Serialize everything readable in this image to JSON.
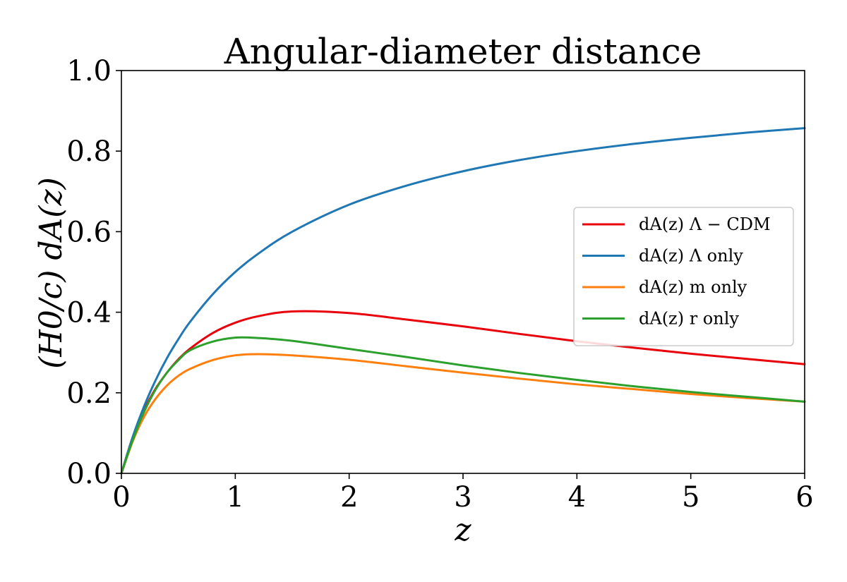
{
  "chart_data": {
    "type": "line",
    "title": "Angular-diameter distance",
    "xlabel": "z",
    "ylabel": "(H0/c) dA(z)",
    "xlim": [
      0,
      6
    ],
    "ylim": [
      0,
      1
    ],
    "x_ticks": [
      0,
      1,
      2,
      3,
      4,
      5,
      6
    ],
    "y_ticks": [
      0.0,
      0.2,
      0.4,
      0.6,
      0.8,
      1.0
    ],
    "x_tick_labels": [
      "0",
      "1",
      "2",
      "3",
      "4",
      "5",
      "6"
    ],
    "y_tick_labels": [
      "0.0",
      "0.2",
      "0.4",
      "0.6",
      "0.8",
      "1.0"
    ],
    "grid": false,
    "legend_position": "right",
    "x": [
      0,
      0.1,
      0.2,
      0.3,
      0.4,
      0.5,
      0.6,
      0.8,
      1.0,
      1.2,
      1.5,
      2.0,
      2.5,
      3.0,
      3.5,
      4.0,
      4.5,
      5.0,
      5.5,
      6.0
    ],
    "series": [
      {
        "name": "dA(z) Λ − CDM",
        "color": "#e8000b",
        "values": [
          0.0,
          0.09,
          0.157,
          0.21,
          0.25,
          0.283,
          0.309,
          0.348,
          0.374,
          0.39,
          0.402,
          0.398,
          0.382,
          0.365,
          0.346,
          0.328,
          0.312,
          0.297,
          0.284,
          0.271
        ]
      },
      {
        "name": "dA(z) Λ only",
        "color": "#1f77b4",
        "values": [
          0.0,
          0.091,
          0.167,
          0.231,
          0.286,
          0.333,
          0.375,
          0.444,
          0.5,
          0.545,
          0.6,
          0.667,
          0.714,
          0.75,
          0.778,
          0.8,
          0.818,
          0.833,
          0.846,
          0.857
        ]
      },
      {
        "name": "dA(z) m only",
        "color": "#ff7f0e",
        "values": [
          0.0,
          0.08,
          0.141,
          0.185,
          0.218,
          0.242,
          0.259,
          0.281,
          0.293,
          0.296,
          0.293,
          0.282,
          0.266,
          0.25,
          0.235,
          0.221,
          0.209,
          0.197,
          0.187,
          0.178
        ]
      },
      {
        "name": "dA(z) r only",
        "color": "#2ca02c",
        "values": [
          0.0,
          0.083,
          0.153,
          0.208,
          0.25,
          0.281,
          0.305,
          0.327,
          0.337,
          0.336,
          0.329,
          0.309,
          0.289,
          0.268,
          0.249,
          0.232,
          0.216,
          0.202,
          0.19,
          0.178
        ]
      }
    ]
  }
}
